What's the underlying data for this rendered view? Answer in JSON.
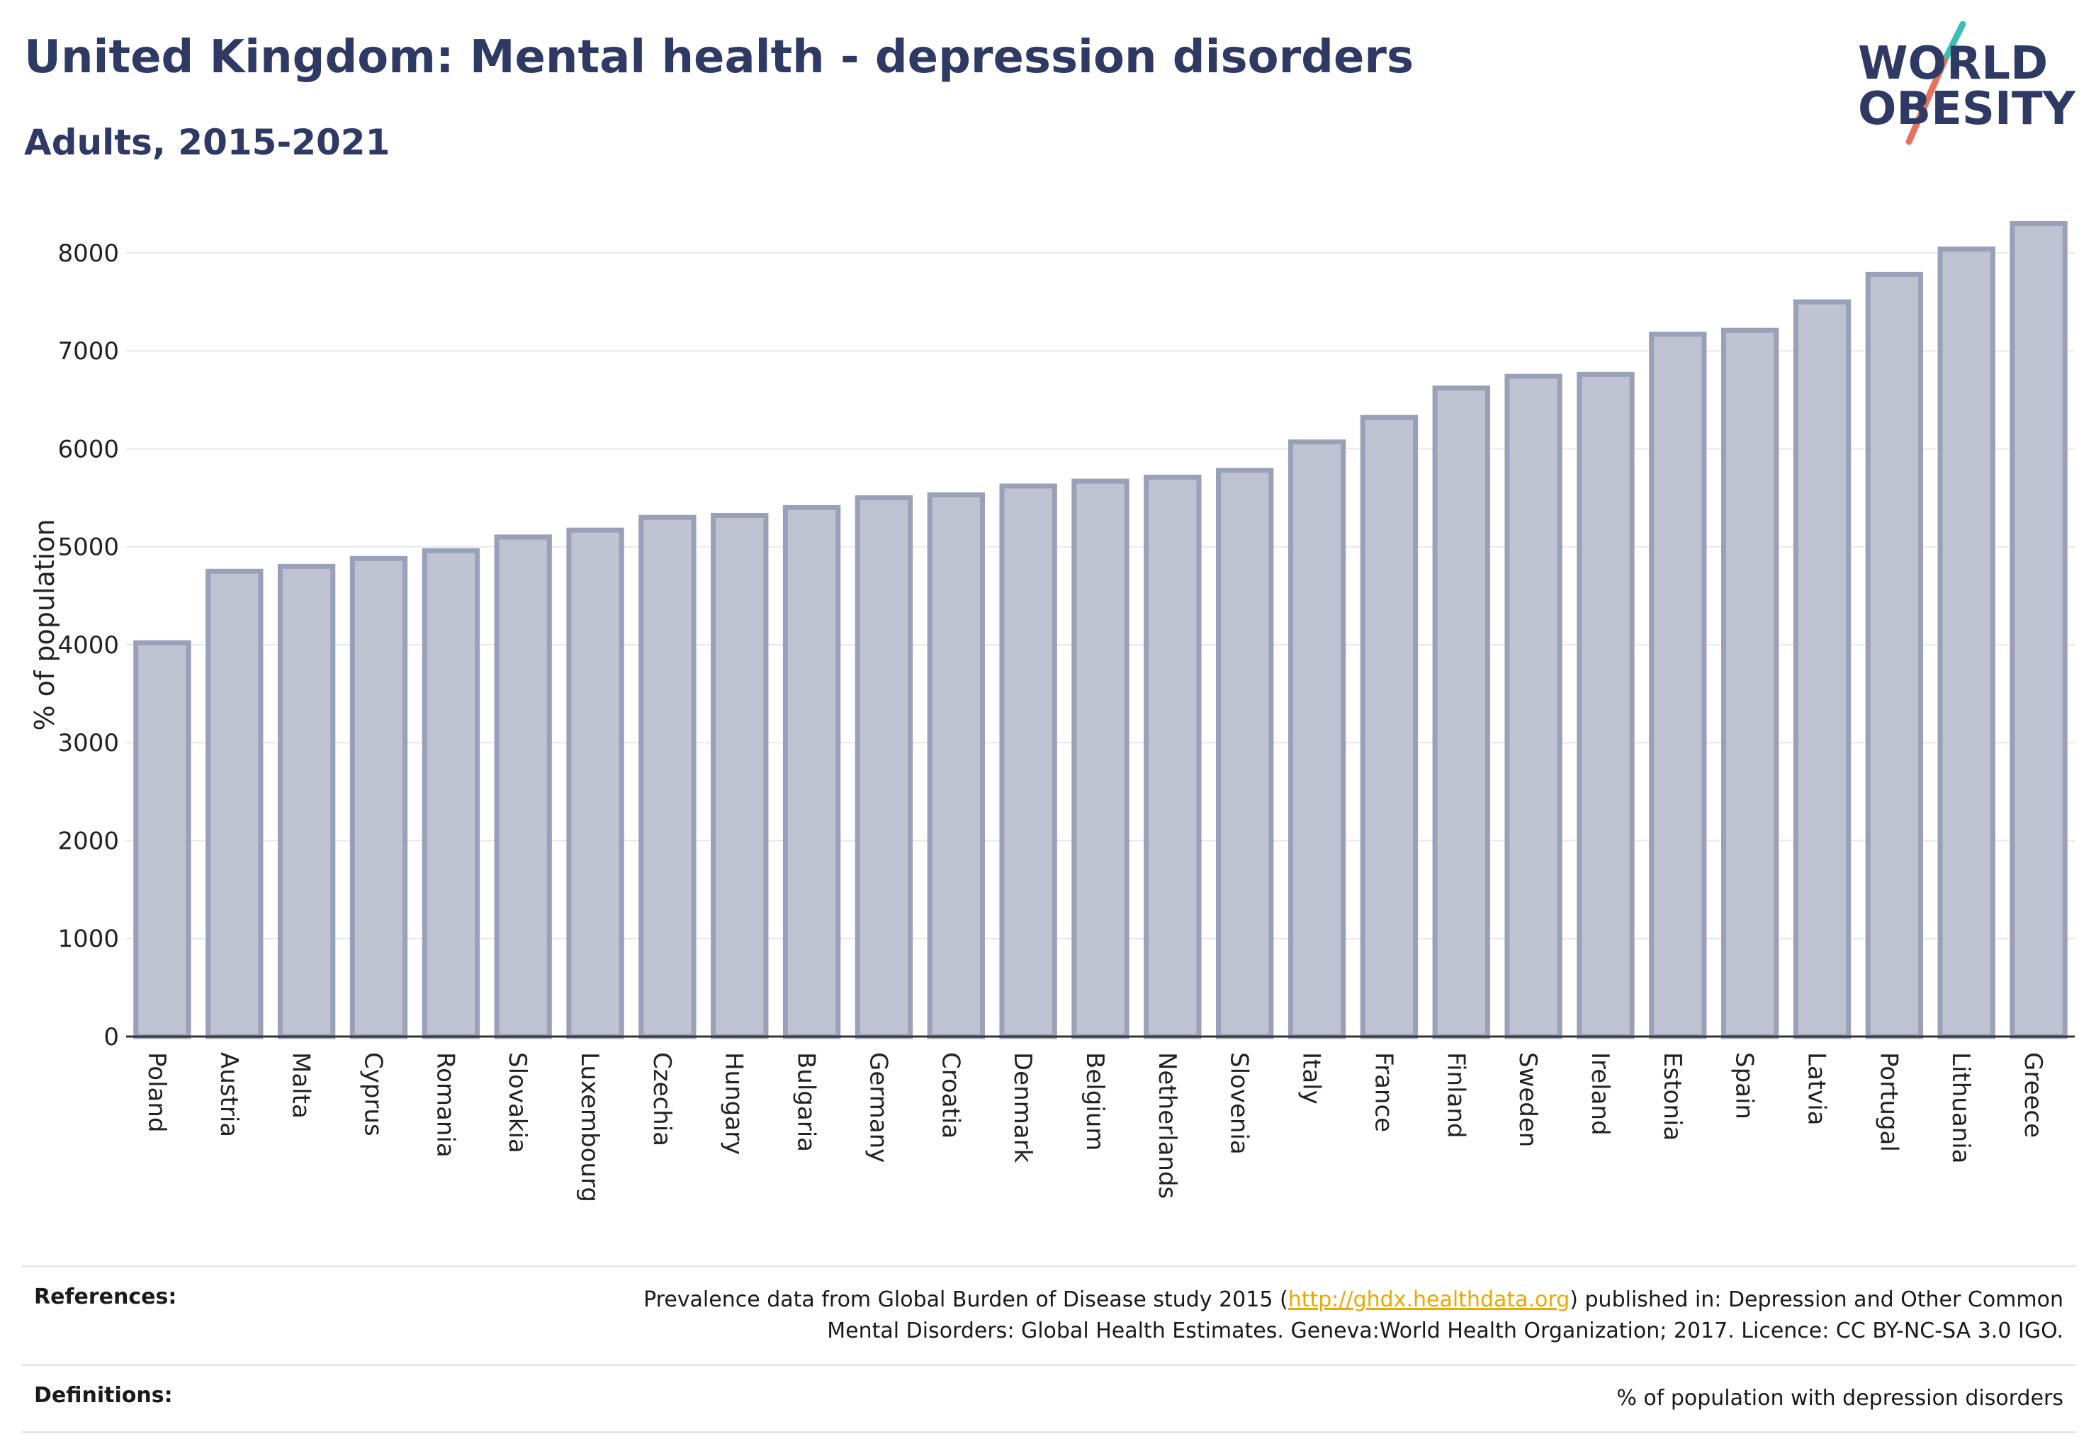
{
  "header": {
    "title": "United Kingdom: Mental health - depression disorders",
    "subtitle": "Adults, 2015-2021"
  },
  "logo": {
    "line1": "WORLD",
    "line2": "OBESITY",
    "colors": {
      "text": "#2e3a63",
      "accent_teal": "#3bbfb5",
      "accent_coral": "#e8705d"
    }
  },
  "chart_data": {
    "type": "bar",
    "categories": [
      "Poland",
      "Austria",
      "Malta",
      "Cyprus",
      "Romania",
      "Slovakia",
      "Luxembourg",
      "Czechia",
      "Hungary",
      "Bulgaria",
      "Germany",
      "Croatia",
      "Denmark",
      "Belgium",
      "Netherlands",
      "Slovenia",
      "Italy",
      "France",
      "Finland",
      "Sweden",
      "Ireland",
      "Estonia",
      "Spain",
      "Latvia",
      "Portugal",
      "Lithuania",
      "Greece"
    ],
    "values": [
      4020,
      4750,
      4800,
      4880,
      4960,
      5100,
      5170,
      5300,
      5320,
      5400,
      5500,
      5530,
      5620,
      5670,
      5710,
      5780,
      6070,
      6320,
      6620,
      6740,
      6760,
      7170,
      7210,
      7500,
      7780,
      8040,
      8300
    ],
    "title": "United Kingdom: Mental health - depression disorders",
    "subtitle": "Adults, 2015-2021",
    "xlabel": "",
    "ylabel": "% of population",
    "ylim": [
      0,
      8600
    ],
    "yticks": [
      0,
      1000,
      2000,
      3000,
      4000,
      5000,
      6000,
      7000,
      8000
    ],
    "grid": true,
    "legend": "none",
    "bar_fill": "#bfc2d1",
    "bar_stroke": "#9aa0b8",
    "grid_color": "#e6e8ef",
    "axis_color": "#333333"
  },
  "footer": {
    "references_label": "References:",
    "references_prefix": "Prevalence data from Global Burden of Disease study 2015 (",
    "references_link": "http://ghdx.healthdata.org",
    "references_suffix": ") published in: Depression and Other Common",
    "references_line2": "Mental Disorders: Global Health Estimates. Geneva:World Health Organization; 2017. Licence: CC BY-NC-SA 3.0 IGO.",
    "definitions_label": "Definitions:",
    "definitions_text": "% of population with depression disorders"
  }
}
